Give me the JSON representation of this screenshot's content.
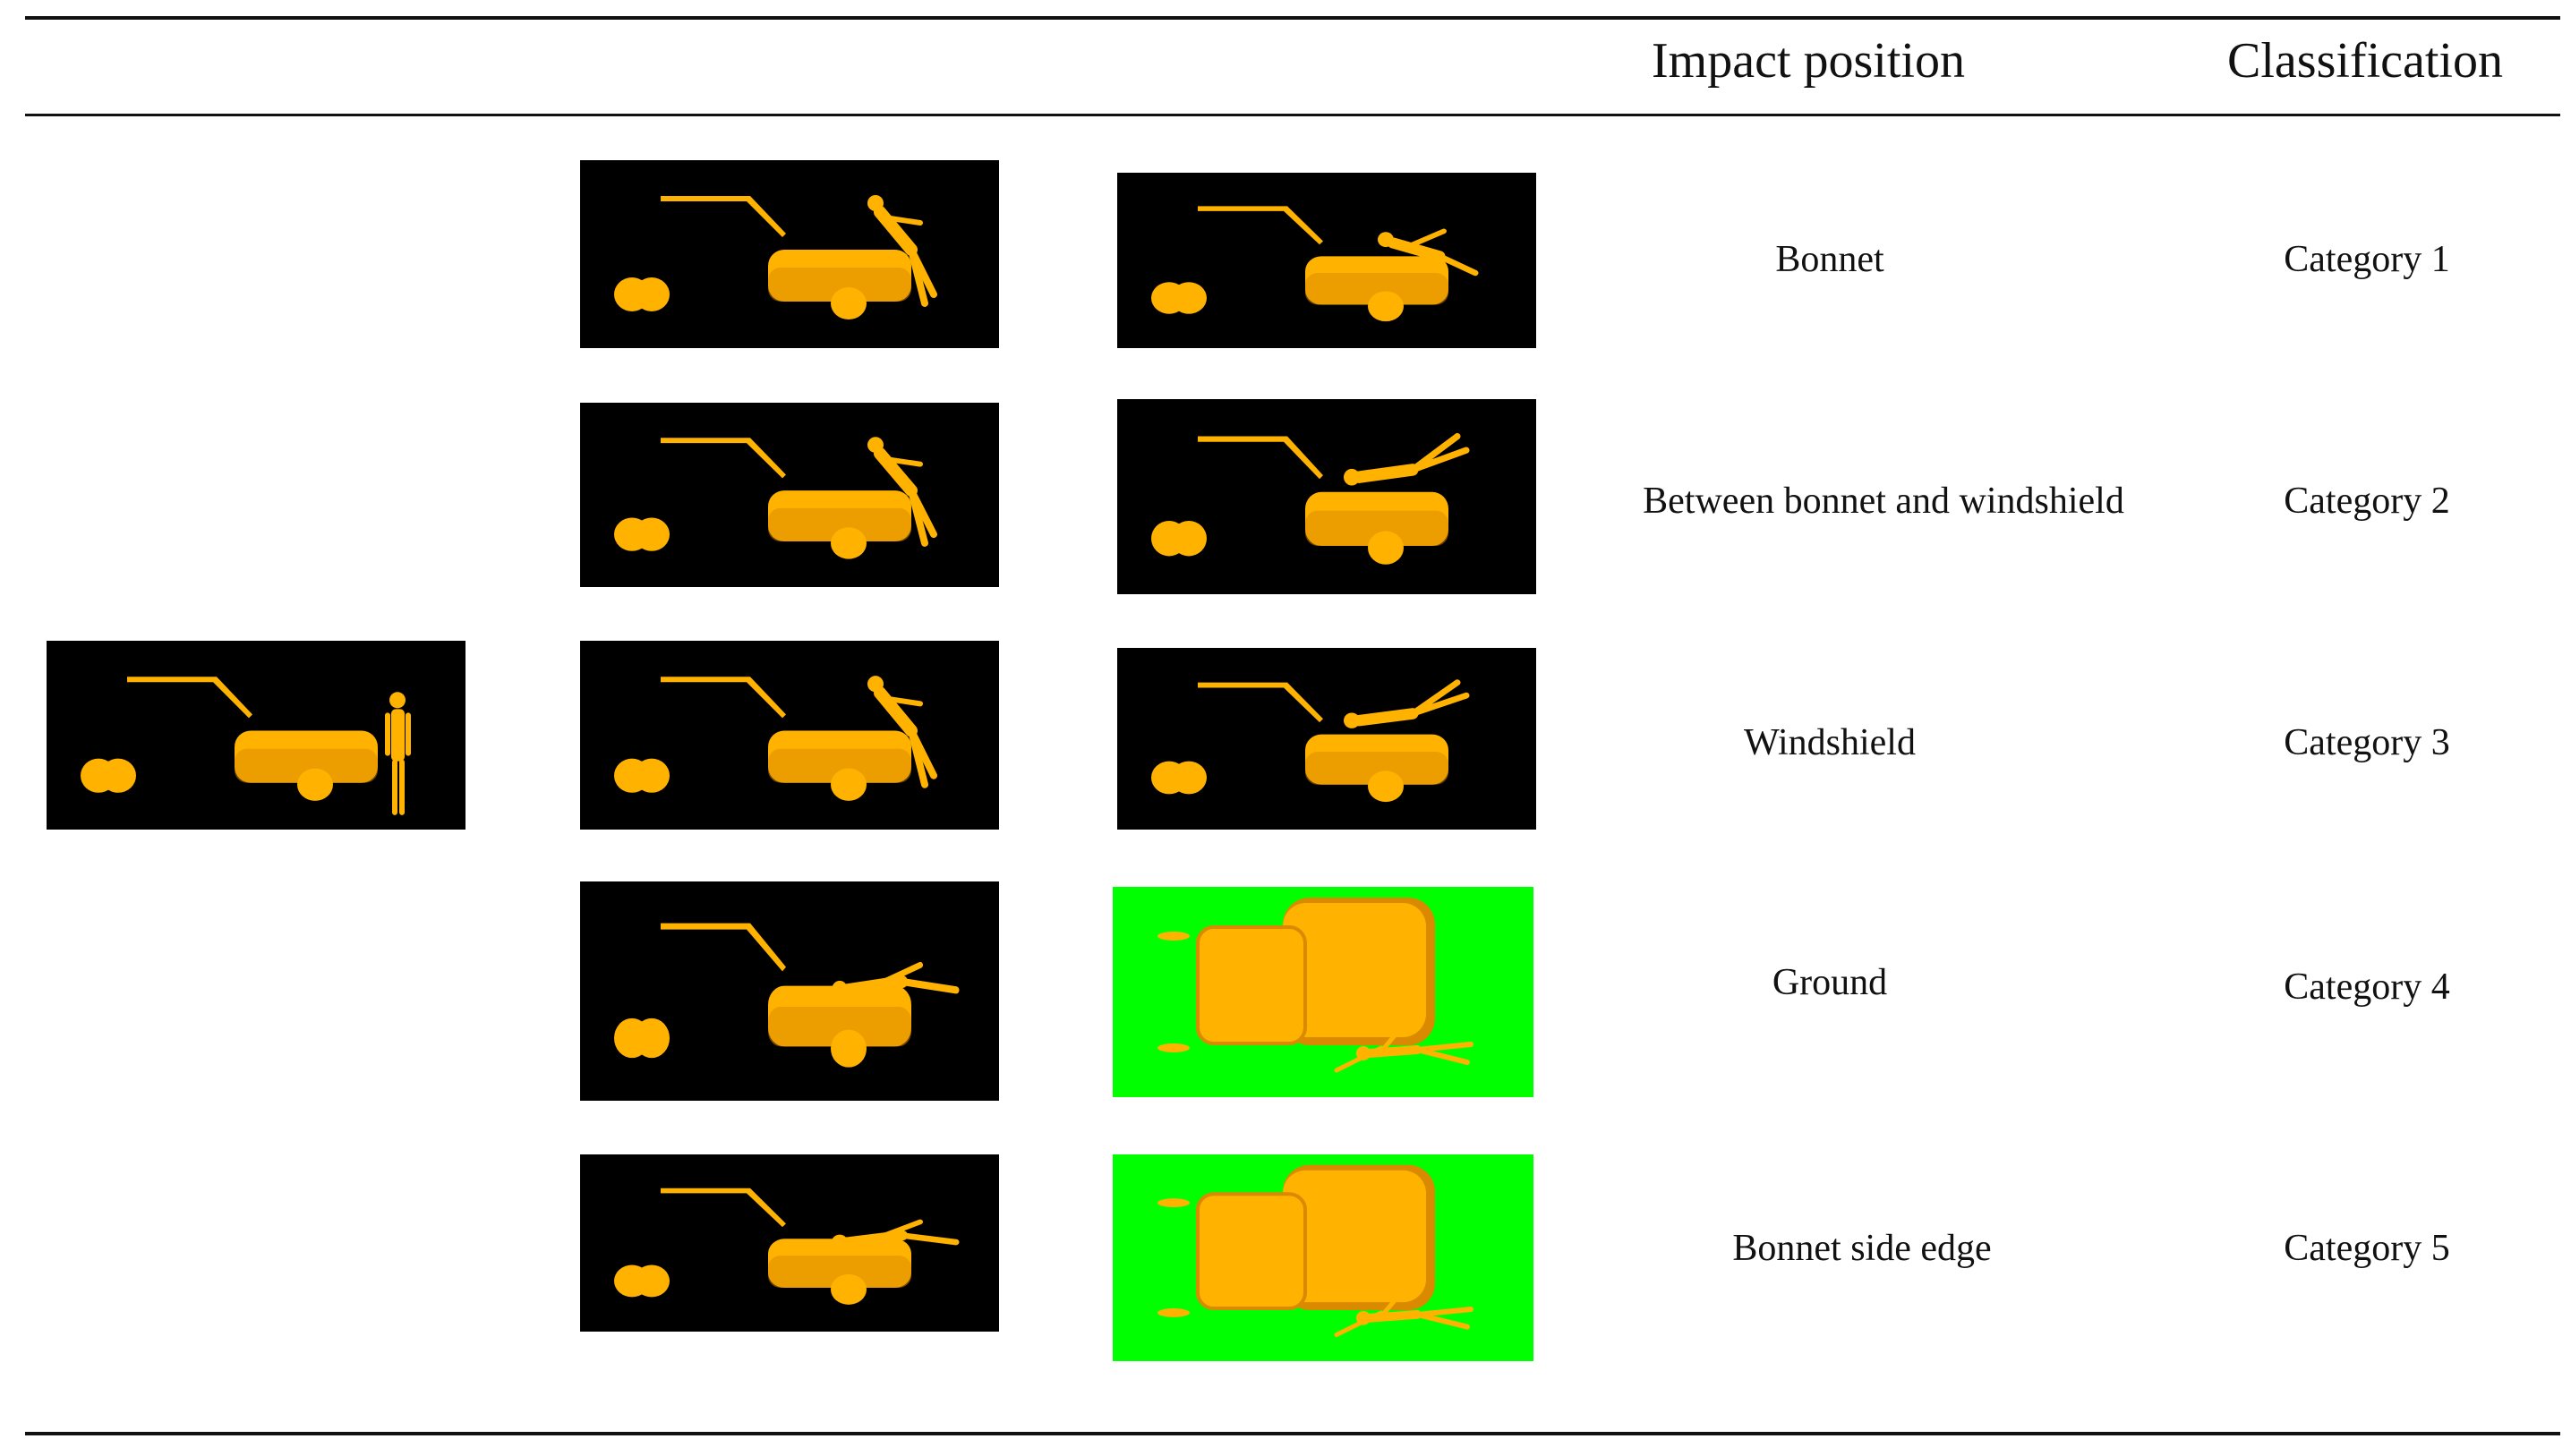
{
  "headers": {
    "impact_position": "Impact position",
    "classification": "Classification"
  },
  "initial_scene": {
    "view": "side",
    "background": "#000000"
  },
  "rows": [
    {
      "impact_position": "Bonnet",
      "classification": "Category 1",
      "frames": [
        {
          "view": "side",
          "background": "#000000"
        },
        {
          "view": "side",
          "background": "#000000"
        }
      ]
    },
    {
      "impact_position": "Between bonnet and windshield",
      "classification": "Category 2",
      "frames": [
        {
          "view": "side",
          "background": "#000000"
        },
        {
          "view": "side",
          "background": "#000000"
        }
      ]
    },
    {
      "impact_position": "Windshield",
      "classification": "Category 3",
      "frames": [
        {
          "view": "side",
          "background": "#000000"
        },
        {
          "view": "side",
          "background": "#000000"
        }
      ]
    },
    {
      "impact_position": "Ground",
      "classification": "Category 4",
      "frames": [
        {
          "view": "side",
          "background": "#000000"
        },
        {
          "view": "top",
          "background": "#00ff00"
        }
      ]
    },
    {
      "impact_position": "Bonnet side edge",
      "classification": "Category 5",
      "frames": [
        {
          "view": "side",
          "background": "#000000"
        },
        {
          "view": "top",
          "background": "#00ff00"
        }
      ]
    }
  ],
  "colors": {
    "model": "#ffb300",
    "model_shade": "#d98a00",
    "rule": "#111111"
  }
}
